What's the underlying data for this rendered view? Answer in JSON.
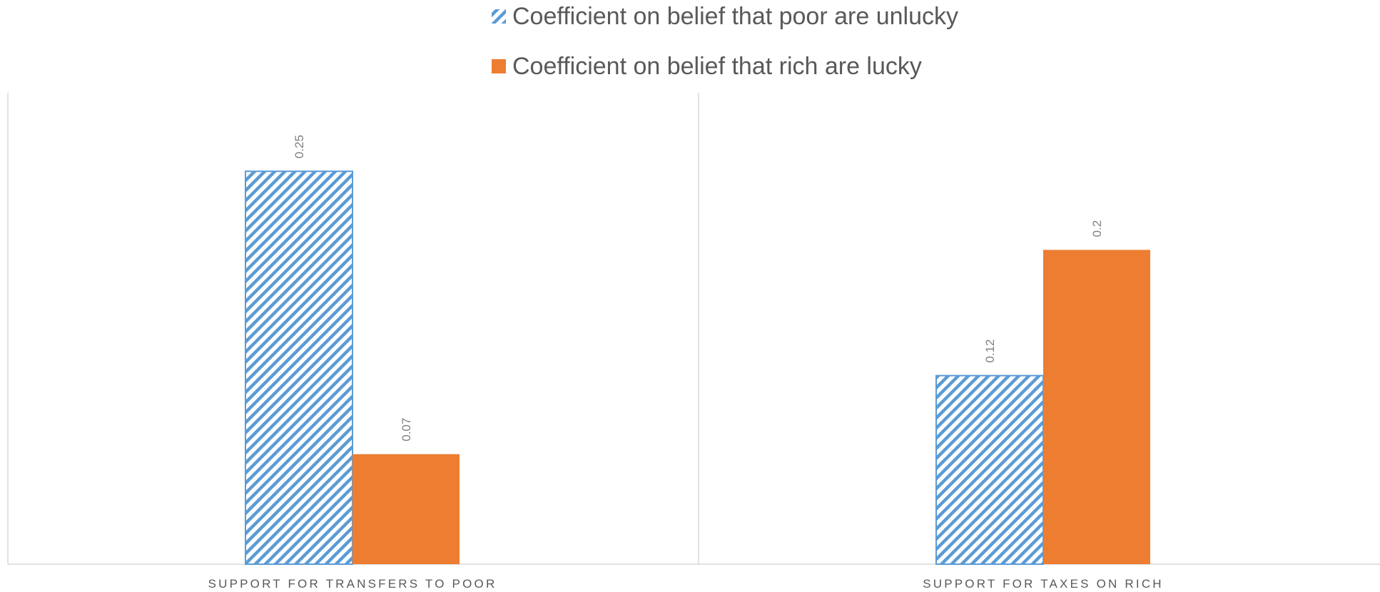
{
  "chart_data": {
    "type": "bar",
    "categories": [
      "SUPPORT FOR TRANSFERS TO POOR",
      "SUPPORT FOR TAXES ON RICH"
    ],
    "series": [
      {
        "name": "Coefficient on belief that poor are unlucky",
        "values": [
          0.25,
          0.12
        ],
        "color": "#5B9BD5",
        "fill": "hatched-diagonal"
      },
      {
        "name": "Coefficient on belief that rich are lucky",
        "values": [
          0.07,
          0.2
        ],
        "color": "#ED7D31",
        "fill": "solid"
      }
    ],
    "data_labels": [
      [
        "0.25",
        "0.12"
      ],
      [
        "0.07",
        "0.2"
      ]
    ],
    "ylim": [
      0,
      0.3
    ],
    "legend_position": "top",
    "grid": false,
    "title": "",
    "xlabel": "",
    "ylabel": ""
  }
}
